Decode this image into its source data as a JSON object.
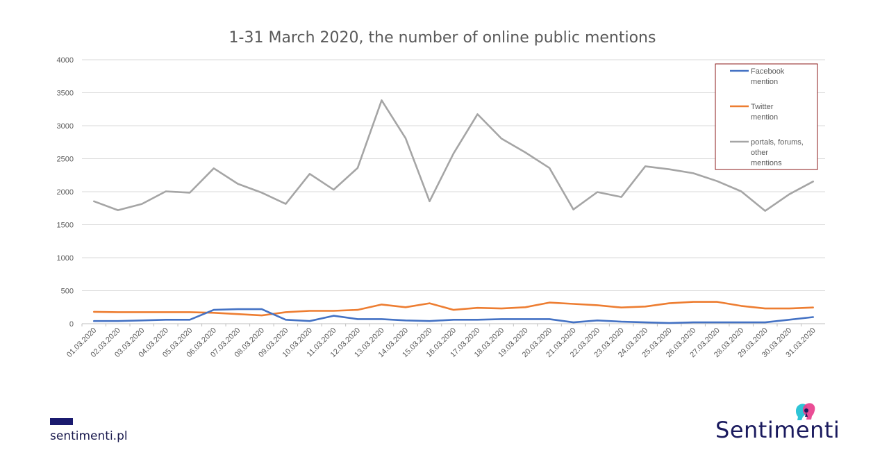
{
  "chart_data": {
    "type": "line",
    "title": "1-31 March 2020, the number of online public mentions",
    "xlabel": "",
    "ylabel": "",
    "ylim": [
      0,
      4000
    ],
    "yticks": [
      0,
      500,
      1000,
      1500,
      2000,
      2500,
      3000,
      3500,
      4000
    ],
    "grid": true,
    "legend_position": "top-right",
    "categories": [
      "01.03.2020",
      "02.03.2020",
      "03.03.2020",
      "04.03.2020",
      "05.03.2020",
      "06.03.2020",
      "07.03.2020",
      "08.03.2020",
      "09.03.2020",
      "10.03.2020",
      "11.03.2020",
      "12.03.2020",
      "13.03.2020",
      "14.03.2020",
      "15.03.2020",
      "16.03.2020",
      "17.03.2020",
      "18.03.2020",
      "19.03.2020",
      "20.03.2020",
      "21.03.2020",
      "22.03.2020",
      "23.03.2020",
      "24.03.2020",
      "25.03.2020",
      "26.03.2020",
      "27.03.2020",
      "28.03.2020",
      "29.03.2020",
      "30.03.2020",
      "31.03.2020"
    ],
    "series": [
      {
        "name": "Facebook mention",
        "legend_lines": [
          "Facebook",
          "mention"
        ],
        "color": "#4472c4",
        "values": [
          40,
          40,
          50,
          60,
          60,
          210,
          220,
          220,
          60,
          40,
          120,
          70,
          70,
          50,
          40,
          60,
          60,
          70,
          70,
          70,
          20,
          50,
          30,
          20,
          10,
          20,
          20,
          20,
          20,
          60,
          100
        ]
      },
      {
        "name": "Twitter mention",
        "legend_lines": [
          "Twitter",
          "mention"
        ],
        "color": "#ed7d31",
        "values": [
          180,
          175,
          175,
          175,
          175,
          165,
          145,
          125,
          175,
          195,
          195,
          210,
          290,
          250,
          310,
          210,
          240,
          230,
          250,
          320,
          300,
          280,
          245,
          260,
          310,
          330,
          330,
          270,
          230,
          230,
          245
        ]
      },
      {
        "name": "portals, forums, other mentions",
        "legend_lines": [
          "portals, forums,",
          "other",
          "mentions"
        ],
        "color": "#a5a5a5",
        "values": [
          1855,
          1720,
          1815,
          2005,
          1985,
          2355,
          2120,
          1985,
          1815,
          2270,
          2030,
          2360,
          3385,
          2810,
          1855,
          2580,
          3175,
          2805,
          2595,
          2360,
          1730,
          1995,
          1920,
          2385,
          2340,
          2280,
          2160,
          2005,
          1710,
          1960,
          2155
        ]
      }
    ]
  },
  "footer": {
    "site": "sentimenti.pl",
    "brand": "Sentimenti",
    "bar_color": "#1a1a6e"
  }
}
